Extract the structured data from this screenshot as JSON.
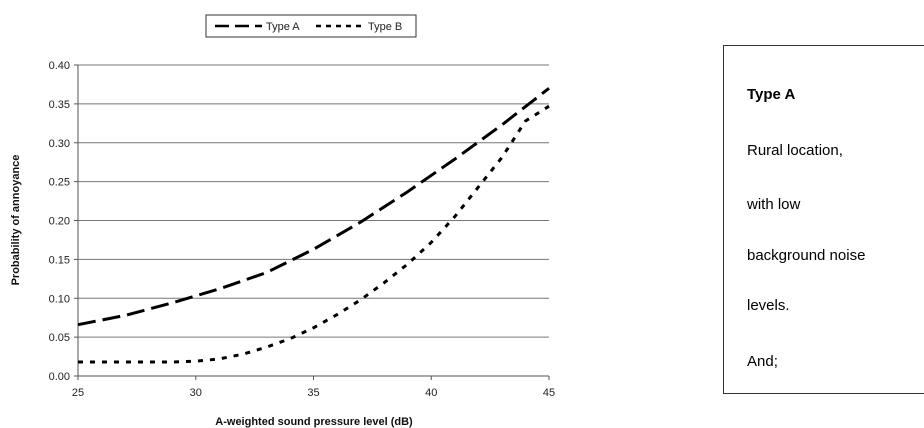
{
  "chart_data": {
    "type": "line",
    "xlabel": "A-weighted sound pressure level (dB)",
    "ylabel": "Probability of annoyance",
    "xlim": [
      25,
      45
    ],
    "ylim": [
      0,
      0.4
    ],
    "xticks": [
      "25",
      "30",
      "35",
      "40",
      "45"
    ],
    "yticks": [
      "0.00",
      "0.05",
      "0.10",
      "0.15",
      "0.20",
      "0.25",
      "0.30",
      "0.35",
      "0.40"
    ],
    "grid": "horizontal",
    "legend": "top-center",
    "series": [
      {
        "name": "Type A",
        "style": "long-dash",
        "x": [
          25,
          27,
          29,
          31,
          33,
          35,
          37,
          39,
          41,
          43,
          45
        ],
        "y": [
          0.066,
          0.078,
          0.094,
          0.112,
          0.133,
          0.163,
          0.198,
          0.237,
          0.279,
          0.323,
          0.37
        ]
      },
      {
        "name": "Type B",
        "style": "short-dash",
        "x": [
          25,
          27,
          29,
          30,
          31,
          32,
          33,
          34,
          35,
          36,
          37,
          38,
          39,
          40,
          41,
          42,
          43,
          44,
          45
        ],
        "y": [
          0.018,
          0.018,
          0.018,
          0.019,
          0.022,
          0.028,
          0.037,
          0.048,
          0.062,
          0.079,
          0.098,
          0.12,
          0.144,
          0.172,
          0.205,
          0.243,
          0.281,
          0.328,
          0.347
        ]
      }
    ],
    "colors": {
      "series": "#000000",
      "grid": "#777777",
      "axis": "#555555"
    }
  },
  "info_box": {
    "heading": "Type A",
    "lines": [
      "Rural location,",
      "with low",
      "background noise",
      "levels.",
      "And;"
    ]
  }
}
